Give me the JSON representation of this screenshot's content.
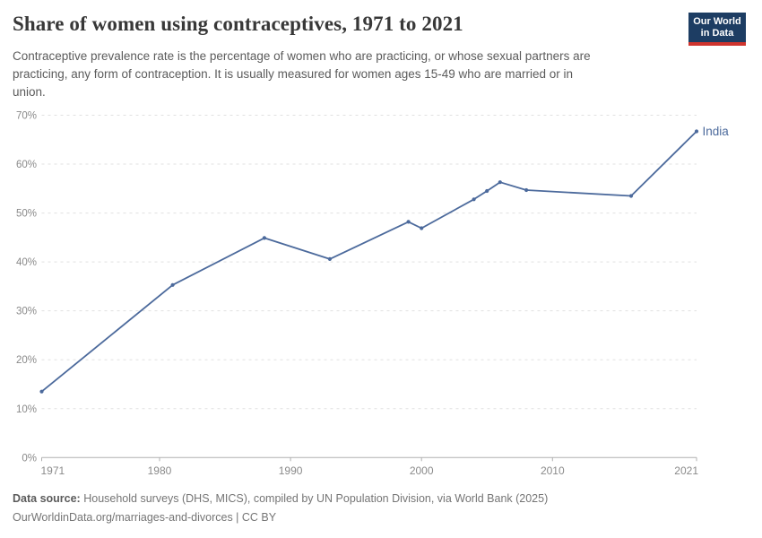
{
  "header": {
    "title": "Share of women using contraceptives, 1971 to 2021",
    "subtitle_lines": [
      "Contraceptive prevalence rate is the percentage of women who are practicing, or whose sexual partners are",
      "practicing, any form of contraception. It is usually measured for women ages 15-49 who are married or in",
      "union."
    ],
    "logo": {
      "line1": "Our World",
      "line2": "in Data",
      "bg_color": "#1d3d63",
      "accent_color": "#cf342e"
    }
  },
  "chart_data": {
    "type": "line",
    "title": "Share of women using contraceptives, 1971 to 2021",
    "x": [
      1971,
      1981,
      1988,
      1993,
      1999,
      2000,
      2004,
      2005,
      2006,
      2008,
      2016,
      2021
    ],
    "series": [
      {
        "name": "India",
        "color": "#4C6A9C",
        "values": [
          13.5,
          35.3,
          44.9,
          40.6,
          48.2,
          46.9,
          52.8,
          54.5,
          56.3,
          54.7,
          53.5,
          66.7
        ]
      }
    ],
    "xlabel": "",
    "ylabel": "",
    "xlim": [
      1971,
      2021
    ],
    "ylim": [
      0,
      70
    ],
    "x_tick_values": [
      1971,
      1980,
      1990,
      2000,
      2010,
      2021
    ],
    "x_tick_labels": [
      "1971",
      "1980",
      "1990",
      "2000",
      "2010",
      "2021"
    ],
    "y_tick_values": [
      0,
      10,
      20,
      30,
      40,
      50,
      60,
      70
    ],
    "y_tick_labels": [
      "0%",
      "10%",
      "20%",
      "30%",
      "40%",
      "50%",
      "60%",
      "70%"
    ],
    "grid": "horizontal-dashed",
    "legend_position": "end-of-line-label",
    "colors": {
      "grid_line": "#e0e0e0",
      "zero_line": "#b0b0b0",
      "axis_text": "#8a8a8a"
    }
  },
  "footer": {
    "source_label": "Data source:",
    "source_text": "Household surveys (DHS, MICS), compiled by UN Population Division, via World Bank (2025)",
    "note_text": "OurWorldinData.org/marriages-and-divorces | CC BY"
  }
}
